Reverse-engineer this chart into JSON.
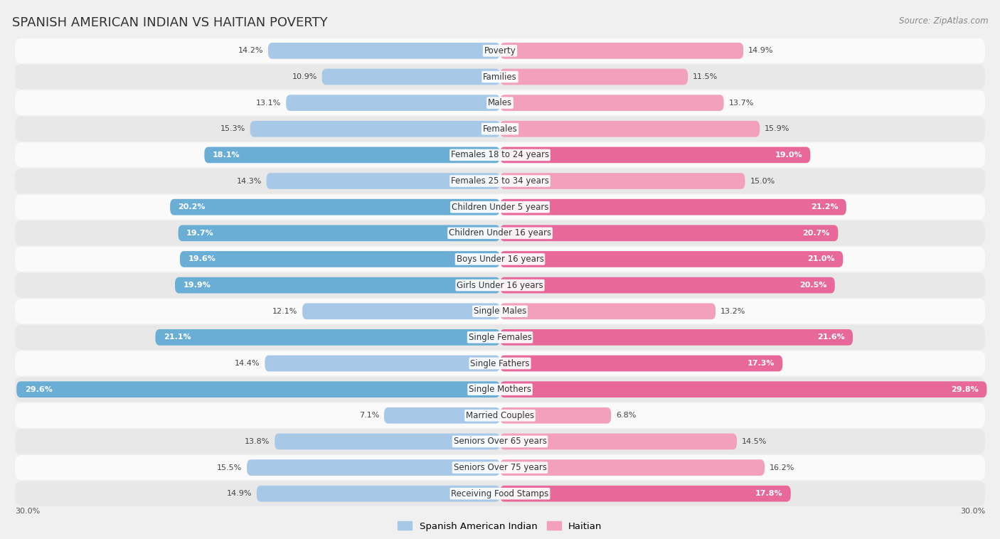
{
  "title": "SPANISH AMERICAN INDIAN VS HAITIAN POVERTY",
  "source": "Source: ZipAtlas.com",
  "categories": [
    "Poverty",
    "Families",
    "Males",
    "Females",
    "Females 18 to 24 years",
    "Females 25 to 34 years",
    "Children Under 5 years",
    "Children Under 16 years",
    "Boys Under 16 years",
    "Girls Under 16 years",
    "Single Males",
    "Single Females",
    "Single Fathers",
    "Single Mothers",
    "Married Couples",
    "Seniors Over 65 years",
    "Seniors Over 75 years",
    "Receiving Food Stamps"
  ],
  "left_values": [
    14.2,
    10.9,
    13.1,
    15.3,
    18.1,
    14.3,
    20.2,
    19.7,
    19.6,
    19.9,
    12.1,
    21.1,
    14.4,
    29.6,
    7.1,
    13.8,
    15.5,
    14.9
  ],
  "right_values": [
    14.9,
    11.5,
    13.7,
    15.9,
    19.0,
    15.0,
    21.2,
    20.7,
    21.0,
    20.5,
    13.2,
    21.6,
    17.3,
    29.8,
    6.8,
    14.5,
    16.2,
    17.8
  ],
  "left_color_default": "#a8c8e8",
  "left_color_highlight": "#6aaed6",
  "right_color_default": "#f2a0bb",
  "right_color_highlight": "#e8689a",
  "highlight_threshold": 17.0,
  "xlim": 30.0,
  "legend_left": "Spanish American Indian",
  "legend_right": "Haitian",
  "background_color": "#f0f0f0",
  "row_color_light": "#fafafa",
  "row_color_dark": "#e8e8e8",
  "title_fontsize": 13,
  "label_fontsize": 8.5,
  "value_fontsize": 8.0
}
